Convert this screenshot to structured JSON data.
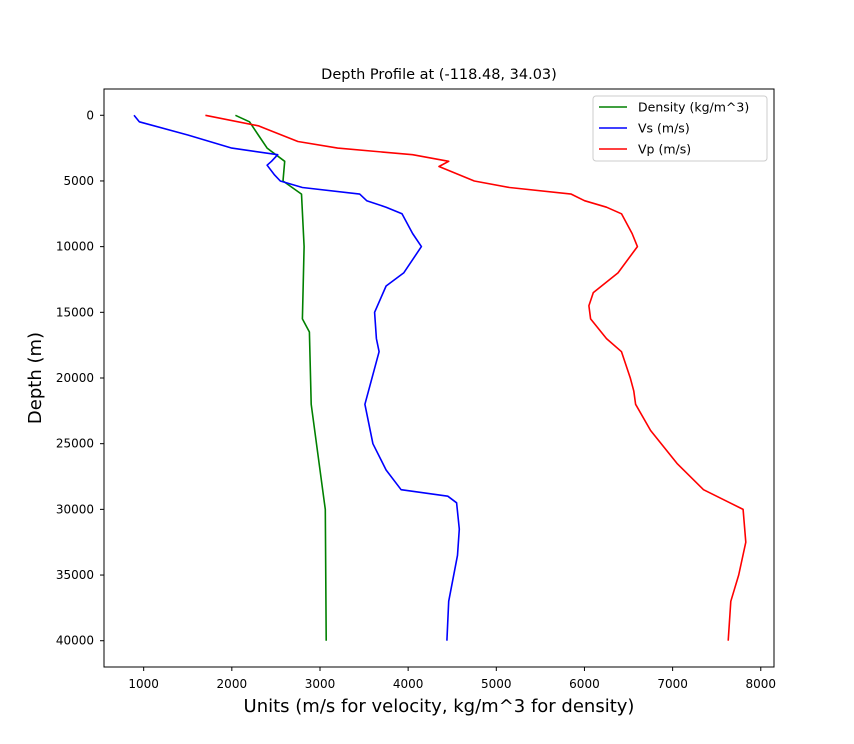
{
  "chart_data": {
    "type": "line",
    "title": "Depth Profile at (-118.48, 34.03)",
    "xlabel": "Units (m/s for velocity, kg/m^3 for density)",
    "ylabel": "Depth (m)",
    "xlim": [
      550,
      8150
    ],
    "ylim": [
      42000,
      -2000
    ],
    "y_inverted": true,
    "grid": false,
    "legend_position": "top-right",
    "x_ticks": [
      1000,
      2000,
      3000,
      4000,
      5000,
      6000,
      7000,
      8000
    ],
    "y_ticks": [
      0,
      5000,
      10000,
      15000,
      20000,
      25000,
      30000,
      35000,
      40000
    ],
    "series": [
      {
        "name": "Density (kg/m^3)",
        "color": "#008000",
        "points": [
          [
            2040,
            0
          ],
          [
            2200,
            500
          ],
          [
            2300,
            1500
          ],
          [
            2400,
            2500
          ],
          [
            2600,
            3500
          ],
          [
            2580,
            5000
          ],
          [
            2790,
            6000
          ],
          [
            2820,
            10000
          ],
          [
            2800,
            15500
          ],
          [
            2880,
            16500
          ],
          [
            2900,
            22000
          ],
          [
            3050,
            29500
          ],
          [
            3060,
            30000
          ],
          [
            3070,
            40000
          ]
        ]
      },
      {
        "name": "Vs (m/s)",
        "color": "#0000ff",
        "points": [
          [
            890,
            0
          ],
          [
            950,
            500
          ],
          [
            1500,
            1500
          ],
          [
            2000,
            2500
          ],
          [
            2520,
            3000
          ],
          [
            2450,
            3500
          ],
          [
            2400,
            3800
          ],
          [
            2480,
            4500
          ],
          [
            2550,
            5000
          ],
          [
            2800,
            5500
          ],
          [
            3450,
            6000
          ],
          [
            3530,
            6500
          ],
          [
            3750,
            7000
          ],
          [
            3930,
            7500
          ],
          [
            4050,
            9000
          ],
          [
            4150,
            10000
          ],
          [
            3950,
            12000
          ],
          [
            3750,
            13000
          ],
          [
            3620,
            15000
          ],
          [
            3640,
            17000
          ],
          [
            3670,
            18000
          ],
          [
            3510,
            22000
          ],
          [
            3600,
            25000
          ],
          [
            3750,
            27000
          ],
          [
            3920,
            28500
          ],
          [
            4450,
            29000
          ],
          [
            4550,
            29500
          ],
          [
            4580,
            31500
          ],
          [
            4560,
            33500
          ],
          [
            4460,
            37000
          ],
          [
            4440,
            40000
          ]
        ]
      },
      {
        "name": "Vp (m/s)",
        "color": "#ff0000",
        "points": [
          [
            1700,
            0
          ],
          [
            2300,
            800
          ],
          [
            2750,
            2000
          ],
          [
            3200,
            2500
          ],
          [
            4050,
            3000
          ],
          [
            4460,
            3500
          ],
          [
            4350,
            3900
          ],
          [
            4750,
            5000
          ],
          [
            5150,
            5500
          ],
          [
            5850,
            6000
          ],
          [
            6000,
            6500
          ],
          [
            6250,
            7000
          ],
          [
            6420,
            7500
          ],
          [
            6540,
            9000
          ],
          [
            6600,
            10000
          ],
          [
            6380,
            12000
          ],
          [
            6100,
            13500
          ],
          [
            6050,
            14500
          ],
          [
            6070,
            15500
          ],
          [
            6250,
            17000
          ],
          [
            6420,
            18000
          ],
          [
            6520,
            20000
          ],
          [
            6560,
            21000
          ],
          [
            6580,
            22000
          ],
          [
            6750,
            24000
          ],
          [
            7050,
            26500
          ],
          [
            7350,
            28500
          ],
          [
            7650,
            29500
          ],
          [
            7800,
            30000
          ],
          [
            7830,
            32500
          ],
          [
            7750,
            35000
          ],
          [
            7660,
            37000
          ],
          [
            7630,
            40000
          ]
        ]
      }
    ]
  }
}
